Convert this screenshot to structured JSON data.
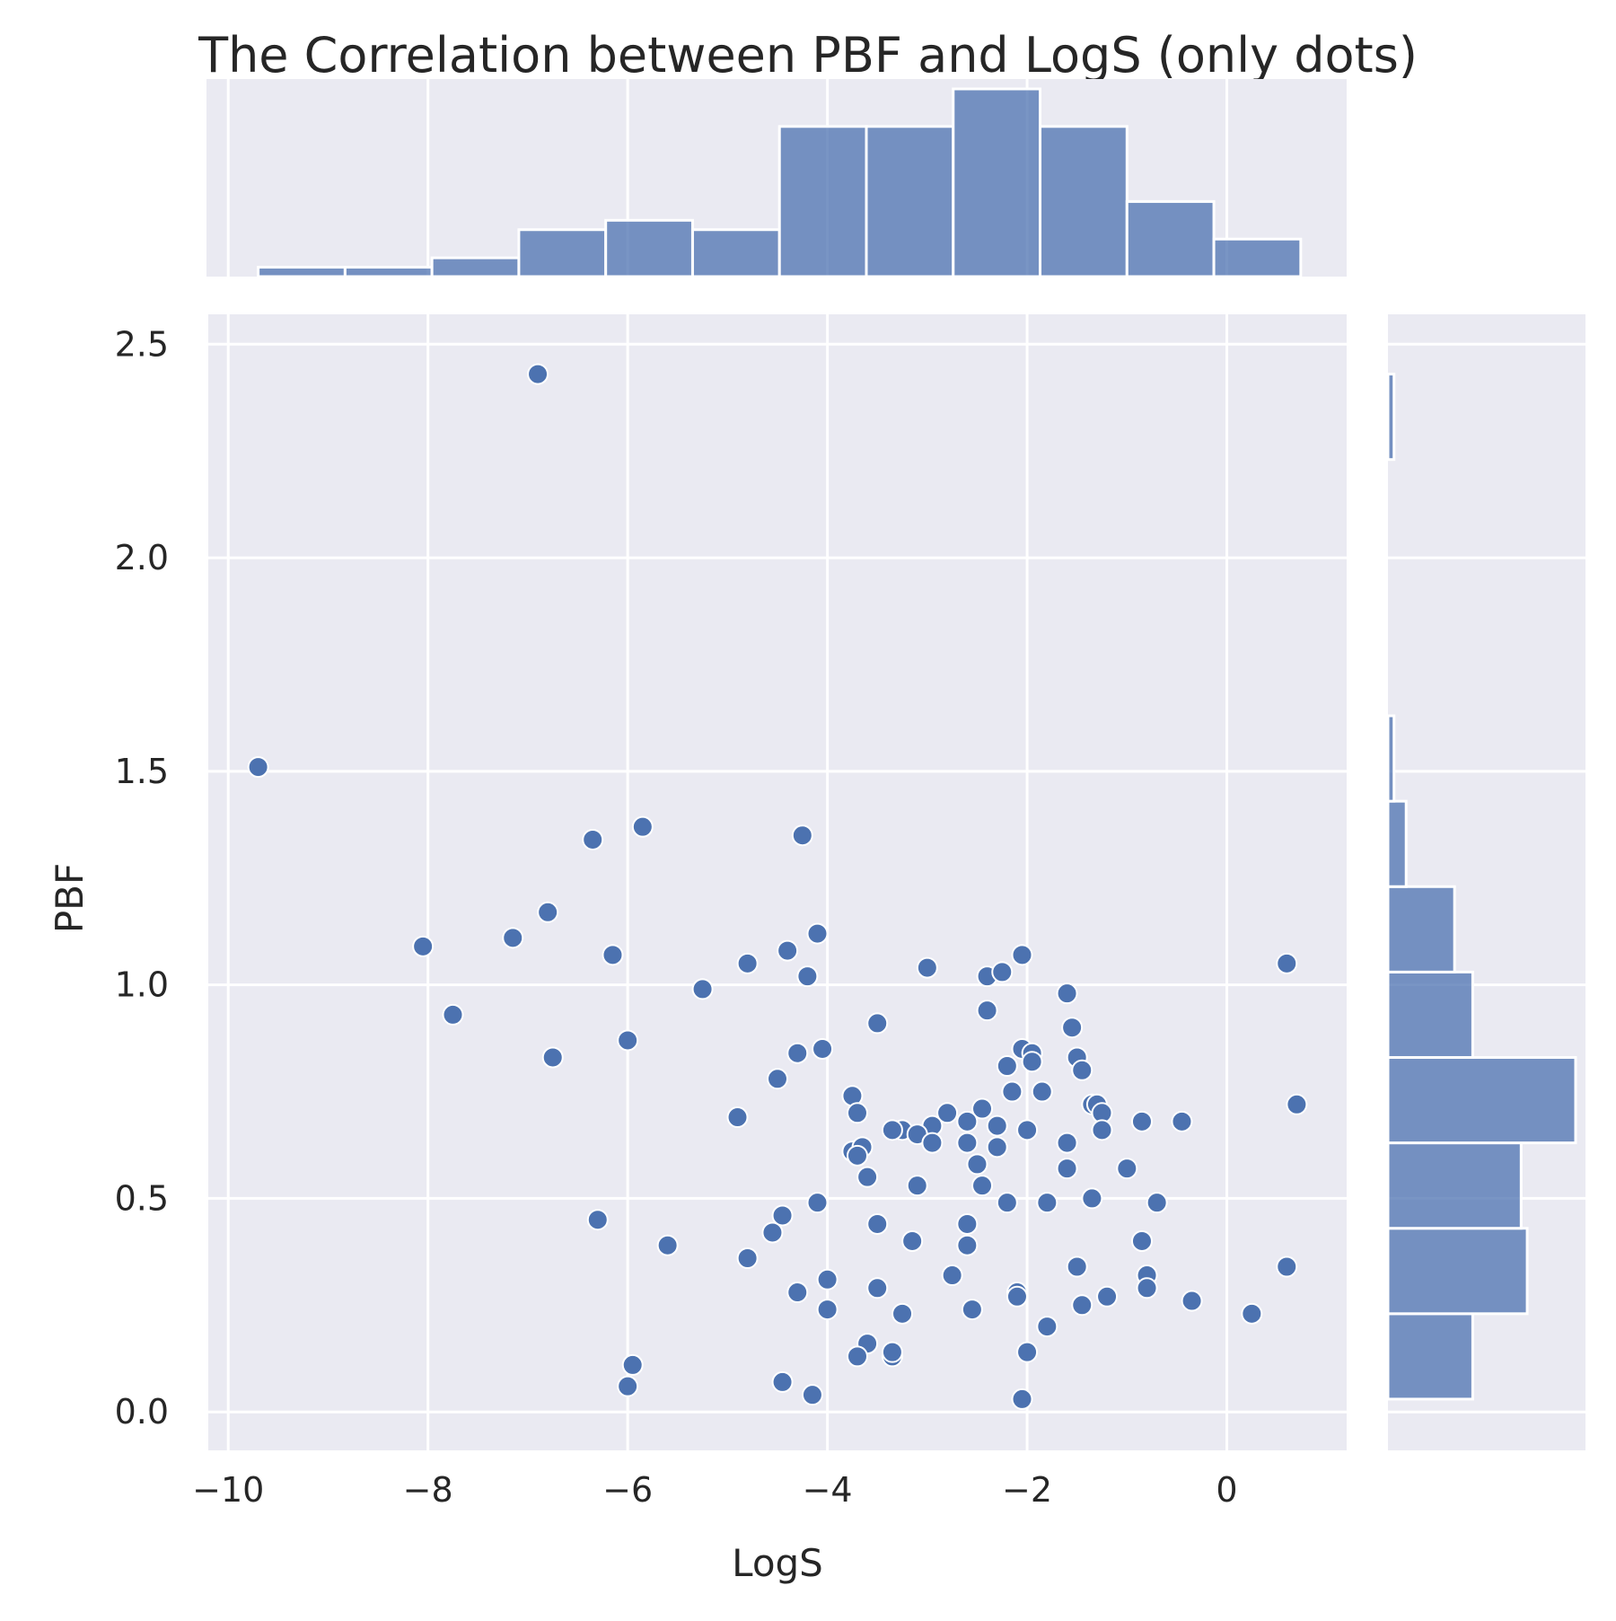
{
  "chart_data": {
    "type": "scatter",
    "title": "The Correlation between PBF and LogS (only dots)",
    "xlabel": "LogS",
    "ylabel": "PBF",
    "xlim": [
      -10.2,
      1.2
    ],
    "ylim": [
      -0.09,
      2.57
    ],
    "xticks": [
      -10,
      -8,
      -6,
      -4,
      -2,
      0
    ],
    "xtick_labels": [
      "−10",
      "−8",
      "−6",
      "−4",
      "−2",
      "0"
    ],
    "yticks": [
      0.0,
      0.5,
      1.0,
      1.5,
      2.0,
      2.5
    ],
    "ytick_labels": [
      "0.0",
      "0.5",
      "1.0",
      "1.5",
      "2.0",
      "2.5"
    ],
    "grid": true,
    "background": "#eaeaf2",
    "point_color": "#4c72b0",
    "bar_color": "#4c72b0",
    "points": [
      [
        -6.9,
        2.43
      ],
      [
        -9.7,
        1.51
      ],
      [
        -5.85,
        1.37
      ],
      [
        -6.35,
        1.34
      ],
      [
        -4.25,
        1.35
      ],
      [
        -6.8,
        1.17
      ],
      [
        -8.05,
        1.09
      ],
      [
        -7.15,
        1.11
      ],
      [
        -6.15,
        1.07
      ],
      [
        -4.1,
        1.12
      ],
      [
        -4.4,
        1.08
      ],
      [
        -4.8,
        1.05
      ],
      [
        -4.2,
        1.02
      ],
      [
        -5.25,
        0.99
      ],
      [
        -7.75,
        0.93
      ],
      [
        -6.75,
        0.83
      ],
      [
        -6.0,
        0.87
      ],
      [
        -4.3,
        0.84
      ],
      [
        -4.05,
        0.85
      ],
      [
        -4.5,
        0.78
      ],
      [
        -4.9,
        0.69
      ],
      [
        -3.0,
        1.04
      ],
      [
        -2.4,
        1.02
      ],
      [
        -2.25,
        1.03
      ],
      [
        -2.05,
        1.07
      ],
      [
        -1.6,
        0.98
      ],
      [
        -2.4,
        0.94
      ],
      [
        -3.5,
        0.91
      ],
      [
        -1.55,
        0.9
      ],
      [
        -2.05,
        0.85
      ],
      [
        -1.95,
        0.84
      ],
      [
        -1.5,
        0.83
      ],
      [
        -1.95,
        0.82
      ],
      [
        -2.2,
        0.81
      ],
      [
        -1.45,
        0.8
      ],
      [
        -2.15,
        0.75
      ],
      [
        -1.85,
        0.75
      ],
      [
        -3.75,
        0.74
      ],
      [
        -3.7,
        0.7
      ],
      [
        -2.8,
        0.7
      ],
      [
        -2.45,
        0.71
      ],
      [
        -2.6,
        0.68
      ],
      [
        -2.95,
        0.67
      ],
      [
        -3.25,
        0.66
      ],
      [
        -3.35,
        0.66
      ],
      [
        -3.1,
        0.65
      ],
      [
        -2.95,
        0.63
      ],
      [
        -2.6,
        0.63
      ],
      [
        -2.3,
        0.67
      ],
      [
        -2.0,
        0.66
      ],
      [
        -1.6,
        0.63
      ],
      [
        -1.35,
        0.72
      ],
      [
        -1.3,
        0.72
      ],
      [
        -1.25,
        0.7
      ],
      [
        -1.25,
        0.66
      ],
      [
        -0.85,
        0.68
      ],
      [
        -0.45,
        0.68
      ],
      [
        0.6,
        1.05
      ],
      [
        0.7,
        0.72
      ],
      [
        -3.75,
        0.61
      ],
      [
        -3.65,
        0.62
      ],
      [
        -3.7,
        0.6
      ],
      [
        -3.6,
        0.55
      ],
      [
        -2.5,
        0.58
      ],
      [
        -2.3,
        0.62
      ],
      [
        -1.6,
        0.57
      ],
      [
        -1.0,
        0.57
      ],
      [
        -2.45,
        0.53
      ],
      [
        -3.1,
        0.53
      ],
      [
        -4.1,
        0.49
      ],
      [
        -2.2,
        0.49
      ],
      [
        -1.8,
        0.49
      ],
      [
        -1.35,
        0.5
      ],
      [
        -0.7,
        0.49
      ],
      [
        -6.3,
        0.45
      ],
      [
        -4.45,
        0.46
      ],
      [
        -4.55,
        0.42
      ],
      [
        -3.5,
        0.44
      ],
      [
        -2.6,
        0.44
      ],
      [
        -5.6,
        0.39
      ],
      [
        -3.15,
        0.4
      ],
      [
        -2.6,
        0.39
      ],
      [
        -0.85,
        0.4
      ],
      [
        -4.8,
        0.36
      ],
      [
        -4.0,
        0.31
      ],
      [
        -2.75,
        0.32
      ],
      [
        -1.5,
        0.34
      ],
      [
        -0.8,
        0.32
      ],
      [
        0.6,
        0.34
      ],
      [
        -4.3,
        0.28
      ],
      [
        -3.5,
        0.29
      ],
      [
        -2.1,
        0.28
      ],
      [
        -2.1,
        0.27
      ],
      [
        -1.2,
        0.27
      ],
      [
        -0.8,
        0.29
      ],
      [
        -4.0,
        0.24
      ],
      [
        -3.25,
        0.23
      ],
      [
        -2.55,
        0.24
      ],
      [
        -1.45,
        0.25
      ],
      [
        -0.35,
        0.26
      ],
      [
        0.25,
        0.23
      ],
      [
        -1.8,
        0.2
      ],
      [
        -3.6,
        0.16
      ],
      [
        -3.7,
        0.13
      ],
      [
        -3.35,
        0.13
      ],
      [
        -3.35,
        0.14
      ],
      [
        -2.0,
        0.14
      ],
      [
        -5.95,
        0.11
      ],
      [
        -6.0,
        0.06
      ],
      [
        -4.45,
        0.07
      ],
      [
        -4.15,
        0.04
      ],
      [
        -2.05,
        0.03
      ]
    ],
    "x_histogram": {
      "bin_edges": [
        -9.7,
        -8.83,
        -7.96,
        -7.09,
        -6.22,
        -5.35,
        -4.48,
        -3.61,
        -2.74,
        -1.87,
        -1.0,
        -0.13,
        0.74
      ],
      "counts": [
        1,
        1,
        2,
        5,
        6,
        5,
        16,
        16,
        20,
        16,
        8,
        4
      ]
    },
    "y_histogram": {
      "bin_edges": [
        0.03,
        0.23,
        0.43,
        0.63,
        0.83,
        1.03,
        1.23,
        1.43,
        1.63,
        1.83,
        2.03,
        2.23,
        2.43
      ],
      "counts": [
        14,
        23,
        22,
        31,
        14,
        11,
        3,
        1,
        0,
        0,
        0,
        1
      ]
    }
  }
}
